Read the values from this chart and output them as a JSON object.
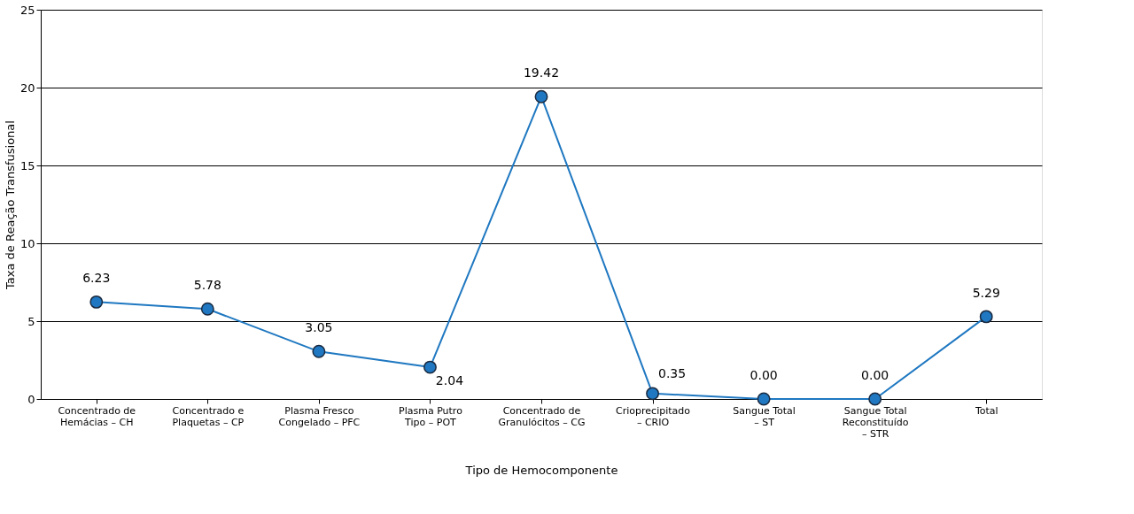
{
  "chart_data": {
    "type": "line",
    "xlabel": "Tipo de Hemocomponente",
    "ylabel": "Taxa de Reação Transfusional",
    "categories": [
      "Concentrado de\nHemácias – CH",
      "Concentrado e\nPlaquetas – CP",
      "Plasma Fresco\nCongelado – PFC",
      "Plasma Putro\nTipo – POT",
      "Concentrado de\nGranulócitos – CG",
      "Crioprecipitado\n– CRIO",
      "Sangue Total\n– ST",
      "Sangue Total\nReconstituído\n– STR",
      "Total"
    ],
    "series": [
      {
        "color": "#1f78c1",
        "values": [
          6.23,
          5.78,
          3.05,
          2.04,
          19.42,
          0.35,
          0.0,
          0.0,
          5.29
        ],
        "value_labels": [
          "6.23",
          "5.78",
          "3.05",
          "2.04",
          "19.42",
          "0.35",
          "0.00",
          "0.00",
          "5.29"
        ]
      }
    ],
    "ylim": [
      0,
      25
    ],
    "yticks": [
      0,
      5,
      10,
      15,
      20,
      25
    ],
    "grid": "y",
    "marker": "circle",
    "line_style": "solid"
  }
}
